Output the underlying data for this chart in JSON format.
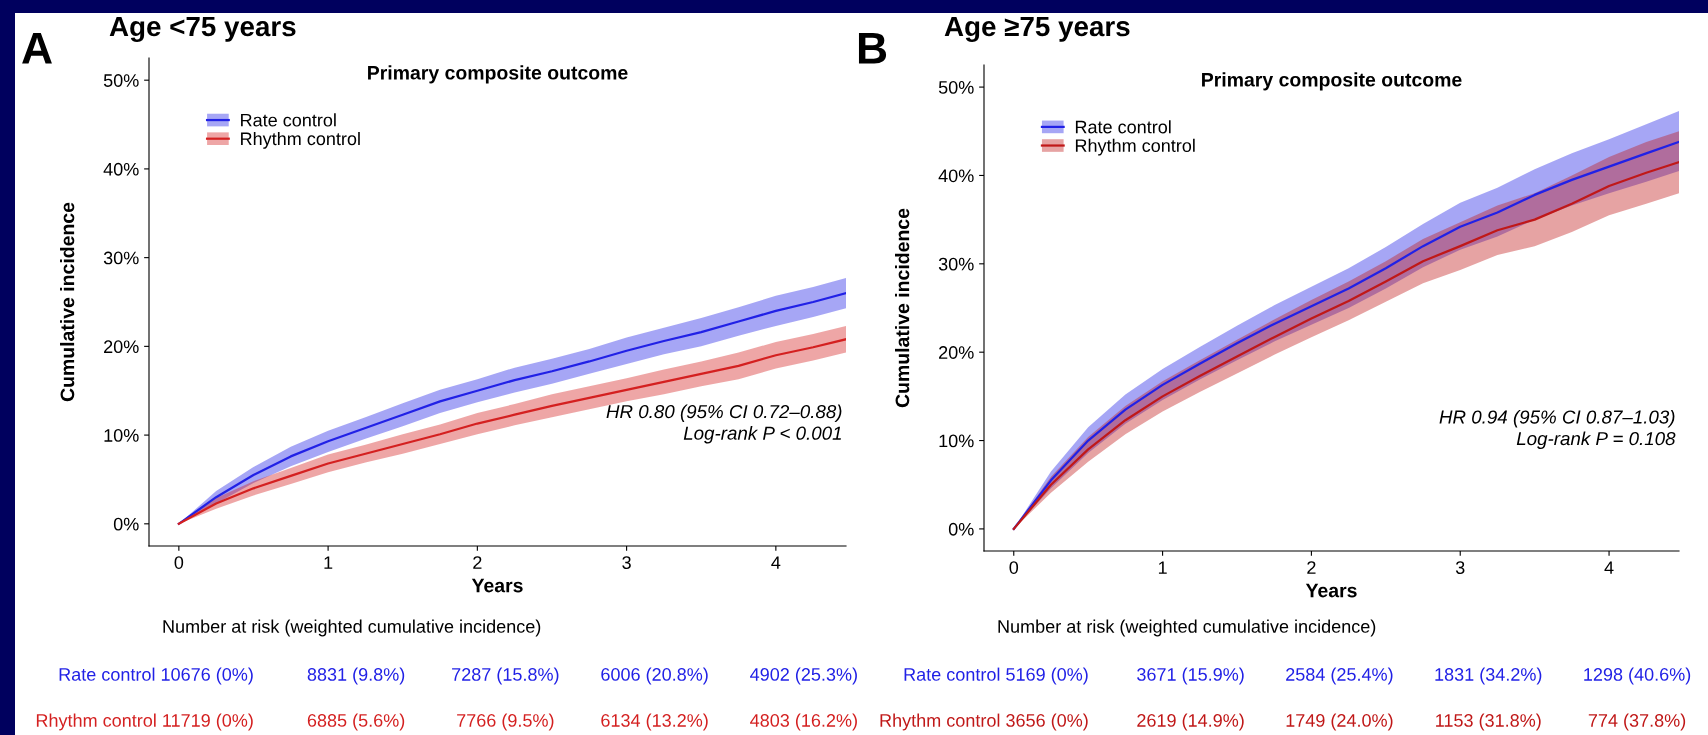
{
  "chart_data": [
    {
      "type": "line",
      "title": "Age <75 years",
      "subtitle": "Primary composite outcome",
      "xlabel": "Years",
      "ylabel": "Cumulative incidence",
      "x": [
        0,
        0.25,
        0.5,
        0.75,
        1,
        1.25,
        1.5,
        1.75,
        2,
        2.25,
        2.5,
        2.75,
        3,
        3.25,
        3.5,
        3.75,
        4,
        4.25,
        4.47
      ],
      "series": [
        {
          "name": "Rate control",
          "color": "#2121e6",
          "values": [
            0,
            3.0,
            5.5,
            7.6,
            9.3,
            10.8,
            12.3,
            13.8,
            15.0,
            16.2,
            17.2,
            18.3,
            19.5,
            20.6,
            21.6,
            22.8,
            24.0,
            25.0,
            26.0
          ],
          "lower": [
            0,
            2.3,
            4.6,
            6.5,
            8.1,
            9.6,
            11.0,
            12.5,
            13.7,
            14.8,
            15.8,
            16.9,
            18.0,
            19.1,
            20.0,
            21.2,
            22.3,
            23.3,
            24.3
          ],
          "upper": [
            0,
            3.7,
            6.4,
            8.7,
            10.5,
            12.0,
            13.6,
            15.1,
            16.3,
            17.6,
            18.6,
            19.7,
            21.0,
            22.1,
            23.2,
            24.4,
            25.7,
            26.7,
            27.7
          ]
        },
        {
          "name": "Rhythm control",
          "color": "#d42020",
          "values": [
            0,
            2.3,
            4.0,
            5.4,
            6.8,
            7.9,
            9.0,
            10.1,
            11.3,
            12.3,
            13.3,
            14.2,
            15.1,
            16.0,
            16.9,
            17.8,
            19.0,
            19.9,
            20.8
          ],
          "lower": [
            0,
            1.7,
            3.2,
            4.5,
            5.8,
            6.9,
            7.9,
            9.0,
            10.1,
            11.1,
            12.0,
            12.9,
            13.8,
            14.6,
            15.5,
            16.3,
            17.5,
            18.4,
            19.3
          ],
          "upper": [
            0,
            2.9,
            4.8,
            6.3,
            7.8,
            8.9,
            10.1,
            11.2,
            12.5,
            13.5,
            14.6,
            15.5,
            16.4,
            17.4,
            18.3,
            19.3,
            20.5,
            21.4,
            22.3
          ]
        }
      ],
      "xlim": [
        -0.2,
        4.47
      ],
      "xticks": [
        0,
        1,
        2,
        3,
        4
      ],
      "ylim": [
        -2.5,
        52.5
      ],
      "yticks": [
        {
          "value": 0,
          "label": "0%"
        },
        {
          "value": 10,
          "label": "10%"
        },
        {
          "value": 20,
          "label": "20%"
        },
        {
          "value": 30,
          "label": "30%"
        },
        {
          "value": 40,
          "label": "40%"
        },
        {
          "value": 50,
          "label": "50%"
        }
      ],
      "legend": "top left",
      "grid": false,
      "annotations": [
        "A",
        "HR 0.80 (95% CI 0.72–0.88)\nLog-rank P < 0.001",
        "Number at risk (weighted cumulative incidence)",
        "Rate control 10676 (0%)",
        "8831 (9.8%)",
        "7287 (15.8%)",
        "6006 (20.8%)",
        "4902 (25.3%)",
        "Rhythm control 11719 (0%)",
        "6885 (5.6%)",
        "7766 (9.5%)",
        "6134 (13.2%)",
        "4803 (16.2%)"
      ]
    },
    {
      "type": "line",
      "title": "Age ≥75 years",
      "subtitle": "Primary composite outcome",
      "xlabel": "Years",
      "ylabel": "Cumulative incidence",
      "x": [
        0,
        0.25,
        0.5,
        0.75,
        1,
        1.25,
        1.5,
        1.75,
        2,
        2.25,
        2.5,
        2.75,
        3,
        3.25,
        3.5,
        3.75,
        4,
        4.25,
        4.47
      ],
      "series": [
        {
          "name": "Rate control",
          "color": "#2121e6",
          "values": [
            0,
            5.5,
            10.0,
            13.5,
            16.3,
            18.7,
            21.0,
            23.2,
            25.2,
            27.2,
            29.5,
            32.0,
            34.2,
            35.8,
            37.8,
            39.5,
            41.0,
            42.5,
            43.8
          ],
          "lower": [
            0,
            4.6,
            8.6,
            11.9,
            14.6,
            16.9,
            19.1,
            21.2,
            23.1,
            25.0,
            27.2,
            29.6,
            31.6,
            33.1,
            35.0,
            36.6,
            38.0,
            39.3,
            40.5
          ],
          "upper": [
            0,
            6.5,
            11.5,
            15.2,
            18.1,
            20.6,
            23.0,
            25.3,
            27.4,
            29.5,
            31.9,
            34.5,
            36.9,
            38.6,
            40.7,
            42.5,
            44.1,
            45.8,
            47.3
          ]
        },
        {
          "name": "Rhythm control",
          "color": "#c01818",
          "values": [
            0,
            5.0,
            9.0,
            12.3,
            15.0,
            17.3,
            19.5,
            21.7,
            23.8,
            25.8,
            28.0,
            30.3,
            32.0,
            33.8,
            35.0,
            36.8,
            38.8,
            40.3,
            41.5
          ],
          "lower": [
            0,
            4.1,
            7.6,
            10.7,
            13.3,
            15.5,
            17.6,
            19.7,
            21.7,
            23.6,
            25.7,
            27.8,
            29.3,
            31.0,
            32.0,
            33.6,
            35.5,
            36.8,
            38.0
          ],
          "upper": [
            0,
            5.9,
            10.4,
            13.9,
            16.7,
            19.1,
            21.4,
            23.7,
            25.9,
            28.0,
            30.3,
            32.8,
            34.7,
            36.6,
            38.0,
            40.0,
            42.1,
            43.8,
            45.0
          ]
        }
      ],
      "xlim": [
        -0.2,
        4.47
      ],
      "xticks": [
        0,
        1,
        2,
        3,
        4
      ],
      "ylim": [
        -2.5,
        52.5
      ],
      "yticks": [
        {
          "value": 0,
          "label": "0%"
        },
        {
          "value": 10,
          "label": "10%"
        },
        {
          "value": 20,
          "label": "20%"
        },
        {
          "value": 30,
          "label": "30%"
        },
        {
          "value": 40,
          "label": "40%"
        },
        {
          "value": 50,
          "label": "50%"
        }
      ],
      "legend": "top left",
      "grid": false,
      "annotations": [
        "B",
        "HR 0.94 (95% CI 0.87–1.03)\nLog-rank P = 0.108",
        "Number at risk (weighted cumulative incidence)",
        "Rate control 5169 (0%)",
        "3671 (15.9%)",
        "2584 (25.4%)",
        "1831 (34.2%)",
        "1298 (40.6%)",
        "Rhythm control 3656 (0%)",
        "2619 (14.9%)",
        "1749 (24.0%)",
        "1153 (31.8%)",
        "774 (37.8%)"
      ]
    }
  ]
}
